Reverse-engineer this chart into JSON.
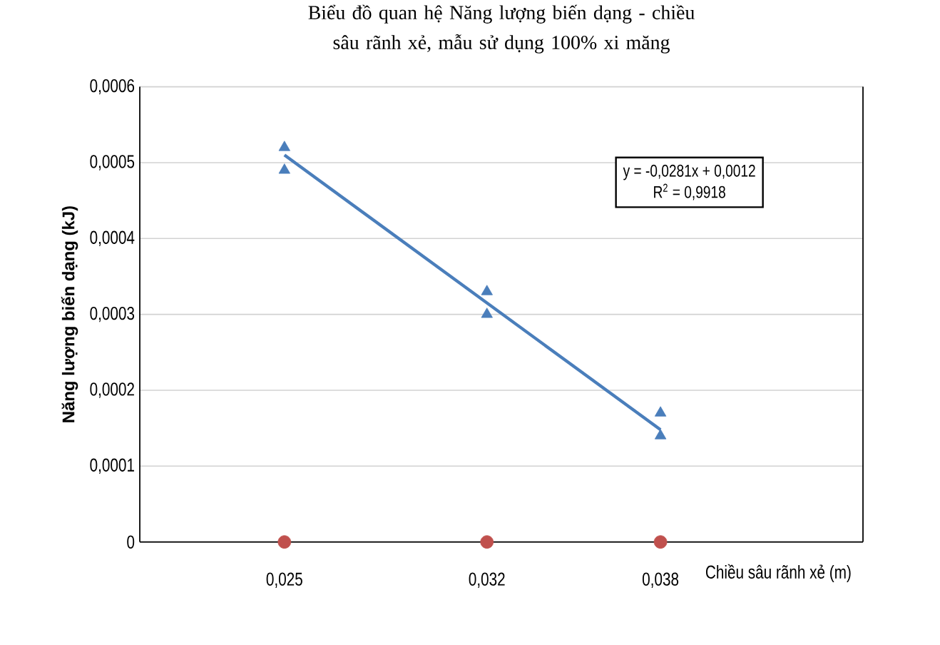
{
  "chart_data": {
    "type": "scatter",
    "title": "Biểu đồ quan hệ Năng lượng biến dạng - chiều sâu rãnh xẻ, mẫu sử dụng 100% xi măng",
    "xlabel": "Chiều sâu rãnh xẻ (m)",
    "ylabel": "Năng lượng biến dạng (kJ)",
    "xlim": [
      0.02,
      0.045
    ],
    "xticks": [
      {
        "value": 0.025,
        "label": "0,025"
      },
      {
        "value": 0.032,
        "label": "0,032"
      },
      {
        "value": 0.038,
        "label": "0,038"
      }
    ],
    "ylim": [
      0,
      0.0006
    ],
    "yticks": [
      0,
      {
        "value": 0.0001,
        "label": "0,0001"
      },
      {
        "value": 0.0002,
        "label": "0,0002"
      },
      {
        "value": 0.0003,
        "label": "0,0003"
      },
      {
        "value": 0.0004,
        "label": "0,0004"
      },
      {
        "value": 0.0005,
        "label": "0,0005"
      },
      {
        "value": 0.0006,
        "label": "0,0006"
      }
    ],
    "grid": "y",
    "series": [
      {
        "marker": "triangle",
        "color": "#4a7ebb",
        "x": [
          0.025,
          0.025,
          0.032,
          0.032,
          0.038,
          0.038
        ],
        "values": [
          0.00052,
          0.00049,
          0.00033,
          0.0003,
          0.00017,
          0.00014
        ]
      },
      {
        "marker": "circle",
        "color": "#c0504d",
        "x": [
          0.025,
          0.032,
          0.038
        ],
        "values": [
          0,
          0,
          0
        ]
      },
      {
        "type": "line",
        "marker": "none",
        "color": "#4a7ebb",
        "x": [
          0.025,
          0.038
        ],
        "values": [
          0.00051,
          0.000148
        ]
      }
    ],
    "annotations": [
      "y = -0,0281x + 0,0012",
      "R$^{2}$ = 0,9918"
    ]
  }
}
